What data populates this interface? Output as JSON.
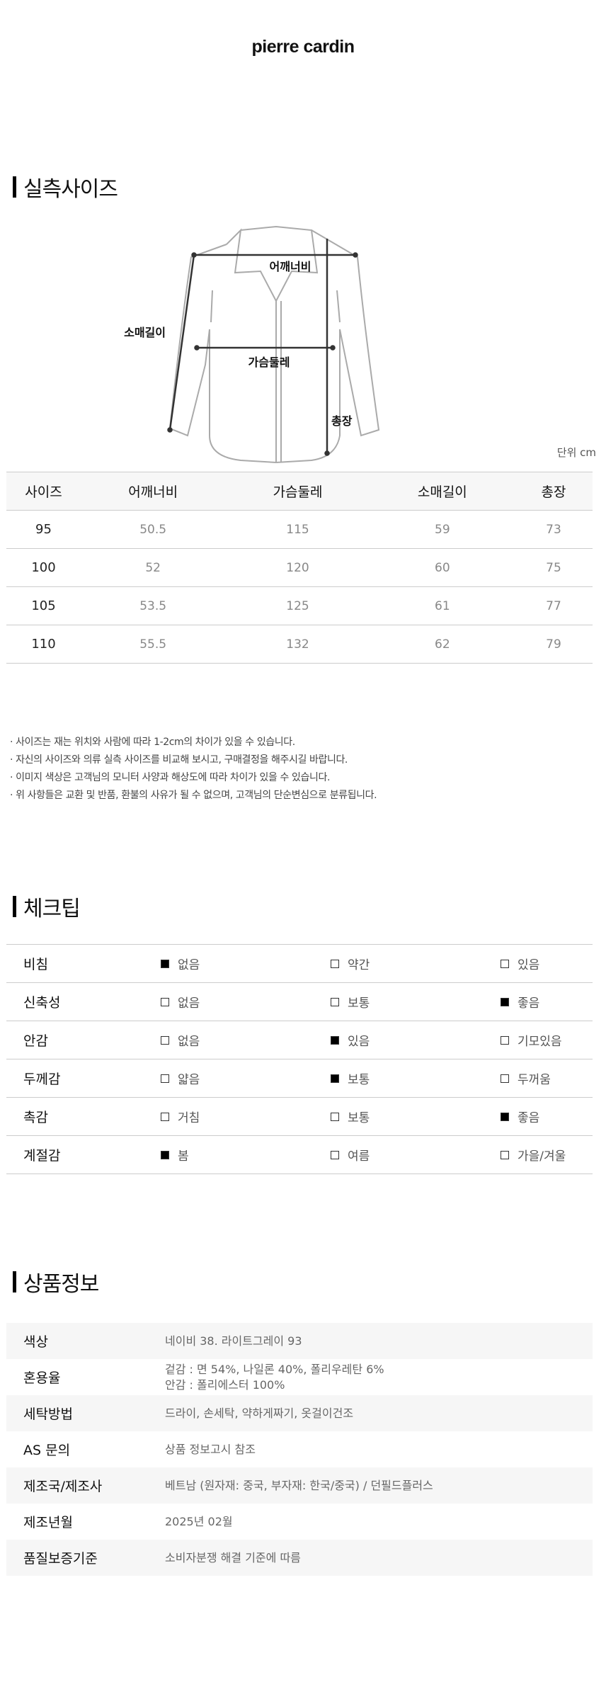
{
  "brand": "pierre cardin",
  "size_section": {
    "title": "실측사이즈",
    "diagram_labels": {
      "shoulder": "어깨너비",
      "chest": "가슴둘레",
      "sleeve": "소매길이",
      "length": "총장"
    },
    "unit": "단위 cm",
    "columns": [
      "사이즈",
      "어깨너비",
      "가슴둘레",
      "소매길이",
      "총장"
    ],
    "rows": [
      [
        "95",
        "50.5",
        "115",
        "59",
        "73"
      ],
      [
        "100",
        "52",
        "120",
        "60",
        "75"
      ],
      [
        "105",
        "53.5",
        "125",
        "61",
        "77"
      ],
      [
        "110",
        "55.5",
        "132",
        "62",
        "79"
      ]
    ]
  },
  "notes": [
    "사이즈는 재는 위치와 사람에 따라 1-2cm의 차이가 있을 수 있습니다.",
    "자신의 사이즈와 의류 실측 사이즈를 비교해 보시고, 구매결정을 해주시길 바랍니다.",
    "이미지 색상은 고객님의 모니터 사양과 해상도에 따라 차이가 있을 수 있습니다.",
    "위 사항들은 교환 및 반품, 환불의 사유가 될 수 없으며, 고객님의 단순변심으로 분류됩니다."
  ],
  "check_section": {
    "title": "체크팁",
    "rows": [
      {
        "label": "비침",
        "options": [
          "없음",
          "약간",
          "있음"
        ],
        "selected": 0
      },
      {
        "label": "신축성",
        "options": [
          "없음",
          "보통",
          "좋음"
        ],
        "selected": 2
      },
      {
        "label": "안감",
        "options": [
          "없음",
          "있음",
          "기모있음"
        ],
        "selected": 1
      },
      {
        "label": "두께감",
        "options": [
          "얇음",
          "보통",
          "두꺼움"
        ],
        "selected": 1
      },
      {
        "label": "촉감",
        "options": [
          "거침",
          "보통",
          "좋음"
        ],
        "selected": 2
      },
      {
        "label": "계절감",
        "options": [
          "봄",
          "여름",
          "가을/겨울"
        ],
        "selected": 0
      }
    ]
  },
  "info_section": {
    "title": "상품정보",
    "rows": [
      {
        "label": "색상",
        "value": [
          "네이비 38. 라이트그레이 93"
        ]
      },
      {
        "label": "혼용율",
        "value": [
          "겉감 : 면 54%, 나일론 40%, 폴리우레탄 6%",
          "안감 : 폴리에스터 100%"
        ]
      },
      {
        "label": "세탁방법",
        "value": [
          "드라이, 손세탁, 약하게짜기, 옷걸이건조"
        ]
      },
      {
        "label": "AS 문의",
        "value": [
          "상품 정보고시 참조"
        ]
      },
      {
        "label": "제조국/제조사",
        "value": [
          "베트남 (원자재: 중국, 부자재: 한국/중국) / 던필드플러스"
        ]
      },
      {
        "label": "제조년월",
        "value": [
          "2025년 02월"
        ]
      },
      {
        "label": "품질보증기준",
        "value": [
          "소비자분쟁 해결 기준에 따름"
        ]
      }
    ]
  }
}
